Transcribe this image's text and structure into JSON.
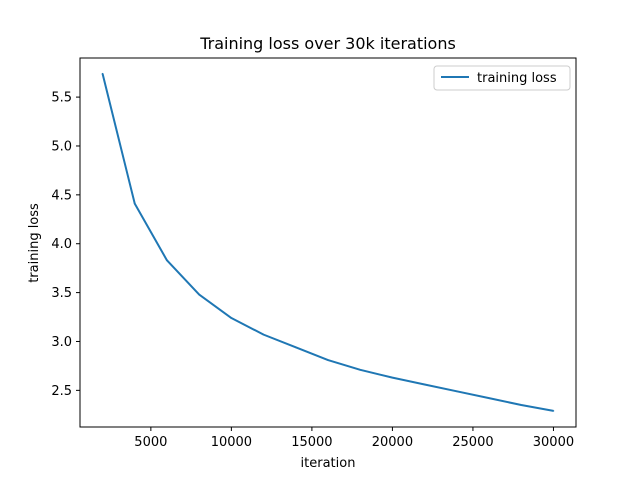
{
  "chart_data": {
    "type": "line",
    "title": "Training loss over 30k iterations",
    "xlabel": "iteration",
    "ylabel": "training loss",
    "xlim": [
      600,
      31400
    ],
    "ylim": [
      2.125,
      5.9
    ],
    "xticks": [
      5000,
      10000,
      15000,
      20000,
      25000,
      30000
    ],
    "yticks": [
      2.5,
      3.0,
      3.5,
      4.0,
      4.5,
      5.0,
      5.5
    ],
    "xtick_labels": [
      "5000",
      "10000",
      "15000",
      "20000",
      "25000",
      "30000"
    ],
    "ytick_labels": [
      "2.5",
      "3.0",
      "3.5",
      "4.0",
      "4.5",
      "5.0",
      "5.5"
    ],
    "grid": false,
    "legend_position": "top-right",
    "series": [
      {
        "name": "training loss",
        "color": "#1f77b4",
        "x": [
          2000,
          4000,
          6000,
          8000,
          10000,
          12000,
          14000,
          16000,
          18000,
          20000,
          22000,
          24000,
          26000,
          28000,
          30000
        ],
        "y": [
          5.74,
          4.41,
          3.83,
          3.48,
          3.24,
          3.07,
          2.94,
          2.81,
          2.71,
          2.63,
          2.56,
          2.49,
          2.42,
          2.35,
          2.29
        ]
      }
    ]
  }
}
